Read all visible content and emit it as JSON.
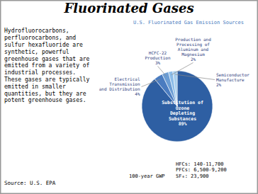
{
  "chart_data": {
    "type": "pie",
    "title": "Fluorinated Gases",
    "subtitle": "U.S.  Fluorinated Gas  Emission Sources",
    "categories": [
      "Substitution of\nOzone\nDepleting\nSubstances\n89%",
      "Electrical\nTransmission\nand Distribution\n4%",
      "HCFC-22\nProduction\n3%",
      "Production and\nProcessing of\nAluminum and\nMagnesium\n2%",
      "Semiconductor\nManufacture\n2%"
    ],
    "values": [
      89,
      4,
      3,
      2,
      2
    ],
    "colors": [
      "#2E5FA3",
      "#4A7CC0",
      "#6B9DD4",
      "#8BBCE8",
      "#A8CEEC"
    ],
    "annotations": [
      "Hydrofluorocarbons,\nperfluorocarbons, and\nsulfur hexafluoride are\nsynthetic, powerful\ngreenhouse gases that are\nemitted from a variety of\nindustrial processes.\nThese gases are typically\nemitted in smaller\nquantities, but they are\npotent greenhouse gases.",
      "Source: U.S. EPA",
      "100-year GWP",
      "HFCs: 140-11,700\nPFCs: 6,500-9,200\nSF₆: 23,900"
    ]
  }
}
